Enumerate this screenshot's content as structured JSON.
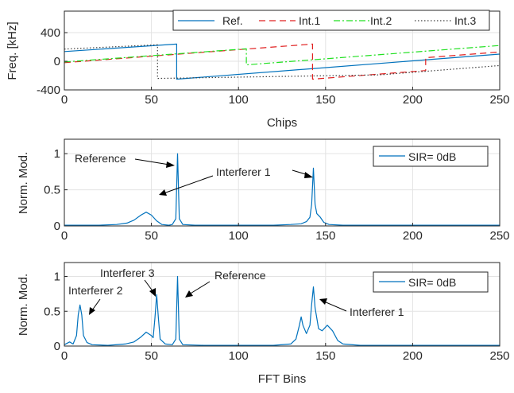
{
  "chart_data": [
    {
      "type": "line",
      "xlabel": "Chips",
      "ylabel": "Freq. [kHz]",
      "xlim": [
        0,
        250
      ],
      "ylim": [
        -400,
        700
      ],
      "xticks": [
        0,
        50,
        100,
        150,
        200,
        250
      ],
      "yticks": [
        -400,
        0,
        400
      ],
      "grid": true,
      "legend": "top-right",
      "series": [
        {
          "name": "Ref.",
          "color": "#0072BD",
          "style": "solid",
          "points": [
            [
              0,
              135
            ],
            [
              64.5,
              240
            ],
            [
              64.5,
              -250
            ],
            [
              250,
              100
            ]
          ]
        },
        {
          "name": "Int.1",
          "color": "#E02020",
          "style": "dashed",
          "points": [
            [
              0,
              -20
            ],
            [
              142.5,
              240
            ],
            [
              142.5,
              -250
            ],
            [
              207.5,
              -130
            ],
            [
              207.5,
              50
            ],
            [
              250,
              130
            ]
          ]
        },
        {
          "name": "Int.2",
          "color": "#20E020",
          "style": "dashdot",
          "points": [
            [
              0,
              -10
            ],
            [
              104.5,
              175
            ],
            [
              104.5,
              -50
            ],
            [
              250,
              220
            ]
          ]
        },
        {
          "name": "Int.3",
          "color": "#404040",
          "style": "dotted",
          "points": [
            [
              0,
              170
            ],
            [
              53.5,
              230
            ],
            [
              53.5,
              -240
            ],
            [
              181,
              -190
            ],
            [
              181,
              -190
            ],
            [
              250,
              -60
            ]
          ]
        }
      ]
    },
    {
      "type": "line",
      "xlabel": "",
      "ylabel": "Norm. Mod.",
      "xlim": [
        0,
        250
      ],
      "ylim": [
        0,
        1.2
      ],
      "xticks": [
        0,
        50,
        100,
        150,
        200,
        250
      ],
      "yticks": [
        0,
        0.5,
        1
      ],
      "grid": true,
      "legend": "top-right",
      "series": [
        {
          "name": "SIR= 0dB",
          "color": "#0072BD",
          "points": [
            [
              0,
              0.01
            ],
            [
              20,
              0.01
            ],
            [
              30,
              0.02
            ],
            [
              36,
              0.04
            ],
            [
              40,
              0.08
            ],
            [
              44,
              0.15
            ],
            [
              47,
              0.19
            ],
            [
              50,
              0.15
            ],
            [
              53,
              0.07
            ],
            [
              56,
              0.02
            ],
            [
              60,
              0.01
            ],
            [
              62,
              0.02
            ],
            [
              64,
              0.1
            ],
            [
              65,
              1.0
            ],
            [
              66,
              0.1
            ],
            [
              68,
              0.02
            ],
            [
              75,
              0.01
            ],
            [
              100,
              0.01
            ],
            [
              120,
              0.01
            ],
            [
              130,
              0.02
            ],
            [
              136,
              0.03
            ],
            [
              139,
              0.06
            ],
            [
              141,
              0.12
            ],
            [
              142,
              0.3
            ],
            [
              143,
              0.8
            ],
            [
              144,
              0.3
            ],
            [
              145,
              0.17
            ],
            [
              147,
              0.12
            ],
            [
              149,
              0.05
            ],
            [
              152,
              0.02
            ],
            [
              160,
              0.01
            ],
            [
              200,
              0.01
            ],
            [
              250,
              0.01
            ]
          ]
        }
      ],
      "annotations": [
        "Reference",
        "Interferer 1"
      ]
    },
    {
      "type": "line",
      "xlabel": "FFT Bins",
      "ylabel": "Norm. Mod.",
      "xlim": [
        0,
        250
      ],
      "ylim": [
        0,
        1.2
      ],
      "xticks": [
        0,
        50,
        100,
        150,
        200,
        250
      ],
      "yticks": [
        0,
        0.5,
        1
      ],
      "grid": true,
      "legend": "top-right",
      "series": [
        {
          "name": "SIR= 0dB",
          "color": "#0072BD",
          "points": [
            [
              0,
              0.02
            ],
            [
              3,
              0.06
            ],
            [
              5,
              0.03
            ],
            [
              7,
              0.15
            ],
            [
              8,
              0.45
            ],
            [
              9,
              0.59
            ],
            [
              10,
              0.45
            ],
            [
              11,
              0.15
            ],
            [
              13,
              0.05
            ],
            [
              16,
              0.02
            ],
            [
              25,
              0.01
            ],
            [
              35,
              0.03
            ],
            [
              40,
              0.06
            ],
            [
              44,
              0.13
            ],
            [
              47,
              0.2
            ],
            [
              50,
              0.15
            ],
            [
              51,
              0.12
            ],
            [
              52,
              0.4
            ],
            [
              53,
              0.74
            ],
            [
              54,
              0.4
            ],
            [
              55,
              0.1
            ],
            [
              58,
              0.03
            ],
            [
              62,
              0.02
            ],
            [
              64,
              0.1
            ],
            [
              65,
              1.0
            ],
            [
              66,
              0.1
            ],
            [
              68,
              0.02
            ],
            [
              80,
              0.01
            ],
            [
              120,
              0.01
            ],
            [
              130,
              0.03
            ],
            [
              133,
              0.1
            ],
            [
              135,
              0.3
            ],
            [
              136,
              0.42
            ],
            [
              137,
              0.3
            ],
            [
              139,
              0.18
            ],
            [
              141,
              0.3
            ],
            [
              142,
              0.6
            ],
            [
              143,
              0.85
            ],
            [
              144,
              0.55
            ],
            [
              146,
              0.25
            ],
            [
              148,
              0.22
            ],
            [
              151,
              0.3
            ],
            [
              154,
              0.22
            ],
            [
              157,
              0.08
            ],
            [
              160,
              0.03
            ],
            [
              170,
              0.01
            ],
            [
              250,
              0.01
            ]
          ]
        }
      ],
      "annotations": [
        "Interferer 3",
        "Interferer 2",
        "Reference",
        "Interferer 1"
      ]
    }
  ]
}
